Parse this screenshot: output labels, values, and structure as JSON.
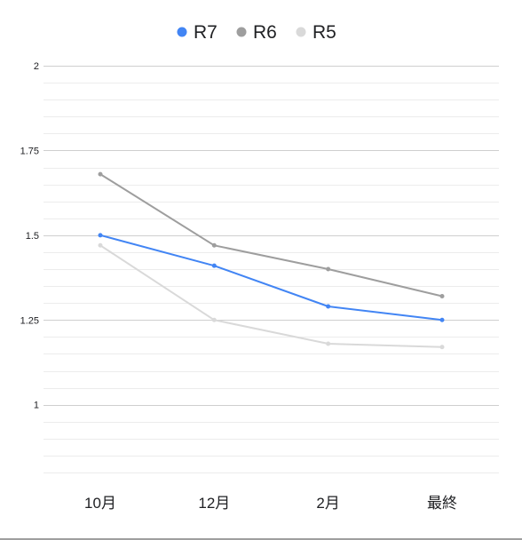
{
  "chart_data": {
    "type": "line",
    "title": "",
    "xlabel": "",
    "ylabel": "",
    "categories": [
      "10月",
      "12月",
      "2月",
      "最終"
    ],
    "ylim": [
      0.8,
      2.0
    ],
    "yticks": [
      1,
      1.25,
      1.5,
      1.75,
      2
    ],
    "ytick_labels": [
      "1",
      "1.25",
      "1.5",
      "1.75",
      "2"
    ],
    "grid": true,
    "legend_position": "top",
    "series": [
      {
        "name": "R7",
        "color": "#4285f4",
        "values": [
          1.5,
          1.41,
          1.29,
          1.25
        ]
      },
      {
        "name": "R6",
        "color": "#9e9e9e",
        "values": [
          1.68,
          1.47,
          1.4,
          1.32
        ]
      },
      {
        "name": "R5",
        "color": "#d9d9d9",
        "values": [
          1.47,
          1.25,
          1.18,
          1.17
        ]
      }
    ]
  }
}
